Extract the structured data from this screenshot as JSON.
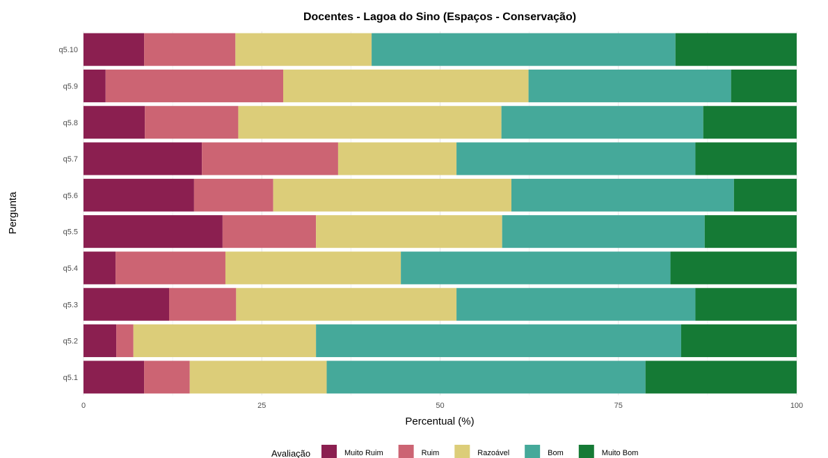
{
  "chart_data": {
    "type": "bar",
    "orientation": "horizontal",
    "stacked": true,
    "title": "Docentes - Lagoa do Sino (Espaços - Conservação)",
    "xlabel": "Percentual (%)",
    "ylabel": "Pergunta",
    "xlim": [
      0,
      100
    ],
    "xticks": [
      0,
      25,
      50,
      75,
      100
    ],
    "grid": true,
    "legend_title": "Avaliação",
    "legend_position": "bottom",
    "categories": [
      "q5.10",
      "q5.9",
      "q5.8",
      "q5.7",
      "q5.6",
      "q5.5",
      "q5.4",
      "q5.3",
      "q5.2",
      "q5.1"
    ],
    "series": [
      {
        "name": "Muito Ruim",
        "color": "#8b1f50",
        "values": [
          8.5,
          3.1,
          8.6,
          16.6,
          15.5,
          19.5,
          4.5,
          12.0,
          4.6,
          8.5
        ]
      },
      {
        "name": "Ruim",
        "color": "#cc6473",
        "values": [
          12.8,
          24.9,
          13.1,
          19.1,
          11.1,
          13.1,
          15.4,
          9.4,
          2.4,
          6.4
        ]
      },
      {
        "name": "Razoável",
        "color": "#dccd79",
        "values": [
          19.1,
          34.4,
          36.9,
          16.6,
          33.4,
          26.1,
          24.6,
          30.9,
          25.6,
          19.2
        ]
      },
      {
        "name": "Bom",
        "color": "#45a99a",
        "values": [
          42.6,
          28.4,
          28.3,
          33.5,
          31.2,
          28.4,
          37.8,
          33.5,
          51.2,
          44.7
        ]
      },
      {
        "name": "Muito Bom",
        "color": "#157a35",
        "values": [
          17.0,
          9.2,
          13.1,
          14.2,
          8.8,
          12.9,
          17.7,
          14.2,
          16.2,
          21.2
        ]
      }
    ]
  }
}
